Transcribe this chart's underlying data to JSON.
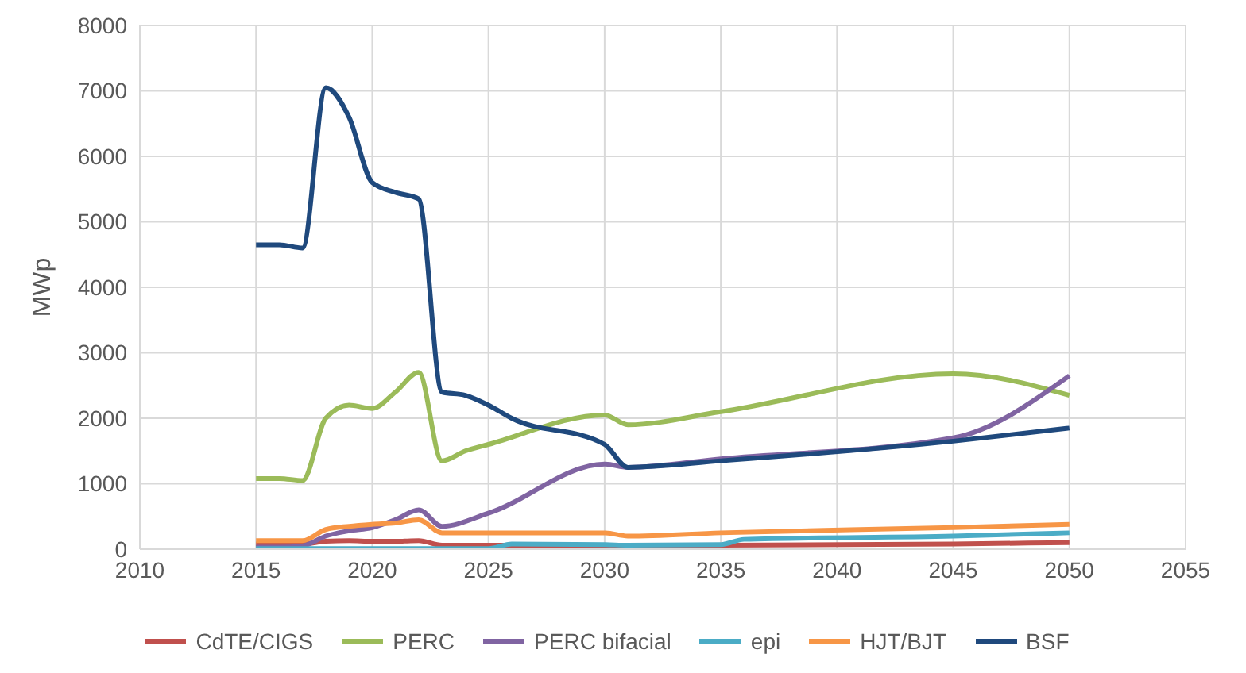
{
  "chart_data": {
    "type": "line",
    "ylabel": "MWp",
    "xlim": [
      2010,
      2055
    ],
    "xticks": [
      2010,
      2015,
      2020,
      2025,
      2030,
      2035,
      2040,
      2045,
      2050,
      2055
    ],
    "ylim": [
      0,
      8000
    ],
    "yticks": [
      0,
      1000,
      2000,
      3000,
      4000,
      5000,
      6000,
      7000,
      8000
    ],
    "grid": true,
    "legend": "bottom",
    "marker": "none",
    "line_style": "solid",
    "series": [
      {
        "name": "CdTE/CIGS",
        "color": "#c0504d",
        "x": [
          2015,
          2016,
          2017,
          2018,
          2019,
          2020,
          2021,
          2022,
          2023,
          2025,
          2030,
          2035,
          2045,
          2050
        ],
        "values": [
          80,
          80,
          80,
          120,
          130,
          120,
          120,
          130,
          60,
          60,
          50,
          60,
          80,
          100
        ]
      },
      {
        "name": "PERC",
        "color": "#9bbb59",
        "x": [
          2015,
          2016,
          2017,
          2018,
          2019,
          2020,
          2021,
          2022,
          2023,
          2024,
          2025,
          2030,
          2031,
          2035,
          2045,
          2050
        ],
        "values": [
          1080,
          1080,
          1050,
          2000,
          2200,
          2150,
          2400,
          2700,
          1350,
          1500,
          1600,
          2050,
          1900,
          2100,
          2680,
          2350
        ]
      },
      {
        "name": "PERC bifacial",
        "color": "#8064a2",
        "x": [
          2015,
          2016,
          2017,
          2018,
          2019,
          2020,
          2021,
          2022,
          2023,
          2025,
          2030,
          2031,
          2035,
          2045,
          2050
        ],
        "values": [
          30,
          30,
          50,
          200,
          280,
          330,
          450,
          600,
          350,
          550,
          1300,
          1250,
          1380,
          1700,
          2650
        ]
      },
      {
        "name": "epi",
        "color": "#4bacc6",
        "x": [
          2015,
          2020,
          2025,
          2026,
          2030,
          2031,
          2035,
          2036,
          2045,
          2050
        ],
        "values": [
          10,
          10,
          10,
          80,
          70,
          60,
          70,
          150,
          200,
          250
        ]
      },
      {
        "name": "HJT/BJT",
        "color": "#f79646",
        "x": [
          2015,
          2016,
          2017,
          2018,
          2019,
          2020,
          2021,
          2022,
          2023,
          2025,
          2030,
          2031,
          2035,
          2045,
          2050
        ],
        "values": [
          130,
          130,
          130,
          300,
          350,
          380,
          400,
          450,
          250,
          250,
          250,
          200,
          250,
          330,
          380
        ]
      },
      {
        "name": "BSF",
        "color": "#1f497d",
        "x": [
          2015,
          2016,
          2017,
          2018,
          2019,
          2020,
          2021,
          2022,
          2023,
          2024,
          2025,
          2026,
          2030,
          2031,
          2035,
          2045,
          2050
        ],
        "values": [
          4650,
          4650,
          4600,
          7050,
          6600,
          5600,
          5450,
          5350,
          2400,
          2350,
          2200,
          2000,
          1600,
          1250,
          1350,
          1650,
          1850
        ]
      }
    ]
  }
}
